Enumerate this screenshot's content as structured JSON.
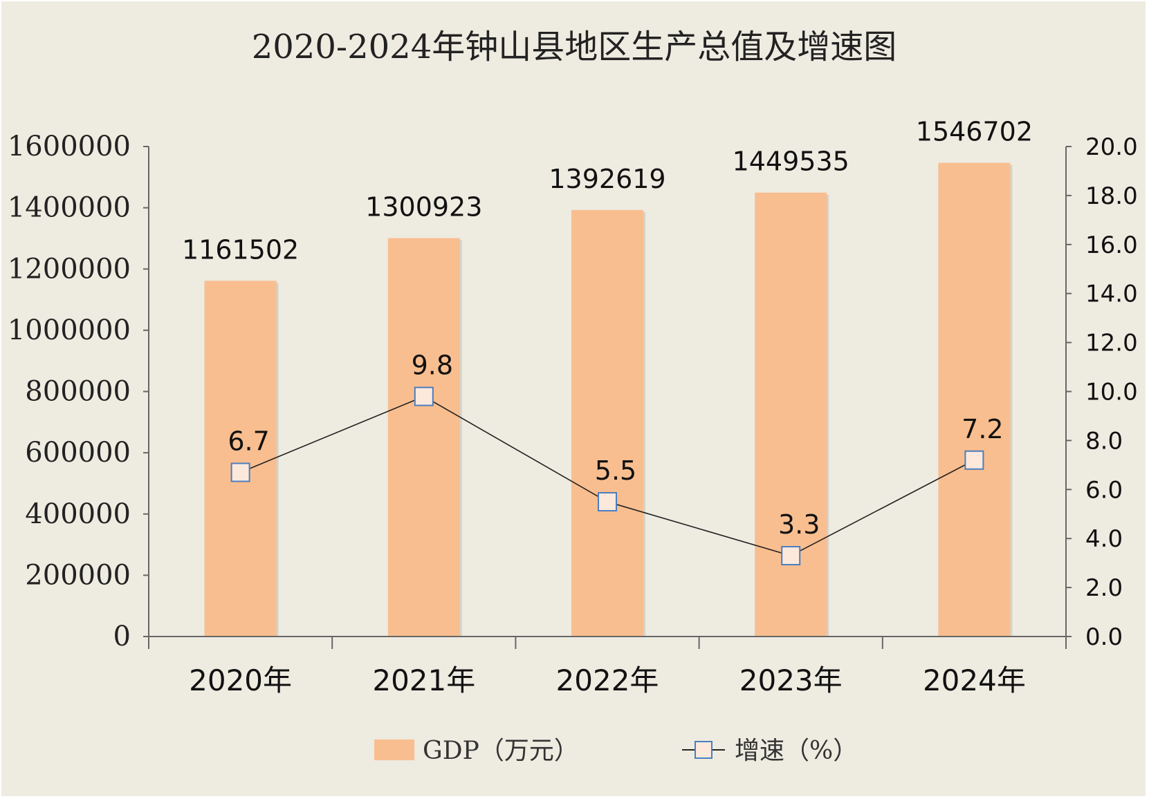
{
  "chart_data": {
    "type": "bar",
    "title": "2020-2024年钟山县地区生产总值及增速图",
    "categories": [
      "2020年",
      "2021年",
      "2022年",
      "2023年",
      "2024年"
    ],
    "series": [
      {
        "name": "GDP（万元）",
        "type": "bar",
        "axis": "left",
        "values": [
          1161502,
          1300923,
          1392619,
          1449535,
          1546702
        ],
        "labels": [
          "1161502",
          "1300923",
          "1392619",
          "1449535",
          "1546702"
        ]
      },
      {
        "name": "增速（%）",
        "type": "line",
        "axis": "right",
        "values": [
          6.7,
          9.8,
          5.5,
          3.3,
          7.2
        ],
        "labels": [
          "6.7",
          "9.8",
          "5.5",
          "3.3",
          "7.2"
        ]
      }
    ],
    "y_left": {
      "range": [
        0,
        1600000
      ],
      "ticks": [
        0,
        200000,
        400000,
        600000,
        800000,
        1000000,
        1200000,
        1400000,
        1600000
      ],
      "tick_labels": [
        "0",
        "200000",
        "400000",
        "600000",
        "800000",
        "1000000",
        "1200000",
        "1400000",
        "1600000"
      ]
    },
    "y_right": {
      "range": [
        0,
        20
      ],
      "ticks": [
        0,
        2,
        4,
        6,
        8,
        10,
        12,
        14,
        16,
        18,
        20
      ],
      "tick_labels": [
        "0.0",
        "2.0",
        "4.0",
        "6.0",
        "8.0",
        "10.0",
        "12.0",
        "14.0",
        "16.0",
        "18.0",
        "20.0"
      ]
    },
    "grid": false,
    "legend_position": "bottom",
    "colors": {
      "background": "#EEEBE1",
      "bar": "#F9BE8F",
      "line": "#222222",
      "marker_fill": "#FCE9DC",
      "marker_stroke": "#4A7EC0",
      "axis": "#666666"
    }
  }
}
